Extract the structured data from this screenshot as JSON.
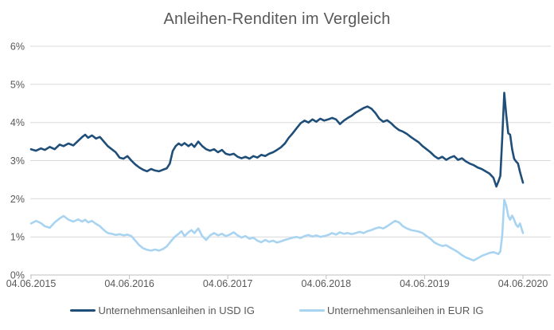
{
  "page": {
    "background": "#FFFFFF"
  },
  "chart_data": {
    "type": "line",
    "title": "Anleihen-Renditen im Vergleich",
    "grid": "horizontal",
    "legend_position": "bottom",
    "colors": {
      "title_text": "#595959",
      "axis_text": "#595959",
      "gridline": "#D9D9D9",
      "axis_line": "#BFBFBF"
    },
    "x_axis": {
      "tick_labels": [
        "04.06.2015",
        "04.06.2016",
        "04.06.2017",
        "04.06.2018",
        "04.06.2019",
        "04.06.2020"
      ],
      "tick_values": [
        0,
        1,
        2,
        3,
        4,
        5
      ],
      "xlim": [
        0,
        5.28
      ]
    },
    "y_axis": {
      "tick_labels": [
        "0%",
        "1%",
        "2%",
        "3%",
        "4%",
        "5%",
        "6%"
      ],
      "tick_values": [
        0,
        1,
        2,
        3,
        4,
        5,
        6
      ],
      "ylim": [
        0,
        6
      ]
    },
    "series": [
      {
        "name": "Unternehmensanleihen in USD IG",
        "color": "#1F4E79",
        "points": [
          [
            0,
            3.3
          ],
          [
            0.05,
            3.26
          ],
          [
            0.1,
            3.32
          ],
          [
            0.14,
            3.28
          ],
          [
            0.19,
            3.36
          ],
          [
            0.24,
            3.3
          ],
          [
            0.29,
            3.42
          ],
          [
            0.33,
            3.38
          ],
          [
            0.38,
            3.45
          ],
          [
            0.43,
            3.4
          ],
          [
            0.48,
            3.52
          ],
          [
            0.52,
            3.62
          ],
          [
            0.55,
            3.68
          ],
          [
            0.58,
            3.6
          ],
          [
            0.62,
            3.66
          ],
          [
            0.66,
            3.58
          ],
          [
            0.7,
            3.62
          ],
          [
            0.74,
            3.5
          ],
          [
            0.78,
            3.38
          ],
          [
            0.82,
            3.3
          ],
          [
            0.86,
            3.22
          ],
          [
            0.9,
            3.08
          ],
          [
            0.94,
            3.05
          ],
          [
            0.98,
            3.12
          ],
          [
            1.02,
            3.0
          ],
          [
            1.06,
            2.9
          ],
          [
            1.1,
            2.82
          ],
          [
            1.14,
            2.76
          ],
          [
            1.18,
            2.72
          ],
          [
            1.22,
            2.78
          ],
          [
            1.26,
            2.74
          ],
          [
            1.3,
            2.72
          ],
          [
            1.34,
            2.76
          ],
          [
            1.38,
            2.8
          ],
          [
            1.41,
            2.92
          ],
          [
            1.44,
            3.25
          ],
          [
            1.47,
            3.38
          ],
          [
            1.5,
            3.45
          ],
          [
            1.53,
            3.4
          ],
          [
            1.56,
            3.46
          ],
          [
            1.6,
            3.38
          ],
          [
            1.63,
            3.44
          ],
          [
            1.66,
            3.36
          ],
          [
            1.7,
            3.5
          ],
          [
            1.74,
            3.38
          ],
          [
            1.78,
            3.3
          ],
          [
            1.82,
            3.26
          ],
          [
            1.86,
            3.3
          ],
          [
            1.9,
            3.22
          ],
          [
            1.94,
            3.28
          ],
          [
            1.98,
            3.18
          ],
          [
            2.02,
            3.15
          ],
          [
            2.06,
            3.18
          ],
          [
            2.1,
            3.1
          ],
          [
            2.14,
            3.06
          ],
          [
            2.18,
            3.1
          ],
          [
            2.22,
            3.05
          ],
          [
            2.26,
            3.12
          ],
          [
            2.3,
            3.08
          ],
          [
            2.34,
            3.15
          ],
          [
            2.38,
            3.12
          ],
          [
            2.42,
            3.18
          ],
          [
            2.46,
            3.22
          ],
          [
            2.5,
            3.28
          ],
          [
            2.54,
            3.35
          ],
          [
            2.58,
            3.45
          ],
          [
            2.62,
            3.6
          ],
          [
            2.66,
            3.72
          ],
          [
            2.7,
            3.85
          ],
          [
            2.74,
            3.98
          ],
          [
            2.78,
            4.05
          ],
          [
            2.82,
            4.0
          ],
          [
            2.86,
            4.08
          ],
          [
            2.9,
            4.02
          ],
          [
            2.94,
            4.1
          ],
          [
            2.98,
            4.05
          ],
          [
            3.02,
            4.08
          ],
          [
            3.06,
            4.12
          ],
          [
            3.1,
            4.08
          ],
          [
            3.14,
            3.96
          ],
          [
            3.18,
            4.05
          ],
          [
            3.22,
            4.12
          ],
          [
            3.26,
            4.18
          ],
          [
            3.3,
            4.26
          ],
          [
            3.34,
            4.32
          ],
          [
            3.38,
            4.38
          ],
          [
            3.42,
            4.42
          ],
          [
            3.46,
            4.36
          ],
          [
            3.5,
            4.25
          ],
          [
            3.54,
            4.1
          ],
          [
            3.58,
            4.02
          ],
          [
            3.62,
            4.06
          ],
          [
            3.66,
            3.98
          ],
          [
            3.7,
            3.88
          ],
          [
            3.74,
            3.8
          ],
          [
            3.78,
            3.76
          ],
          [
            3.82,
            3.7
          ],
          [
            3.86,
            3.62
          ],
          [
            3.9,
            3.55
          ],
          [
            3.94,
            3.48
          ],
          [
            3.98,
            3.38
          ],
          [
            4.02,
            3.3
          ],
          [
            4.06,
            3.22
          ],
          [
            4.1,
            3.12
          ],
          [
            4.14,
            3.05
          ],
          [
            4.18,
            3.1
          ],
          [
            4.22,
            3.02
          ],
          [
            4.26,
            3.08
          ],
          [
            4.3,
            3.12
          ],
          [
            4.34,
            3.02
          ],
          [
            4.38,
            3.06
          ],
          [
            4.42,
            2.98
          ],
          [
            4.46,
            2.92
          ],
          [
            4.5,
            2.88
          ],
          [
            4.54,
            2.82
          ],
          [
            4.58,
            2.78
          ],
          [
            4.62,
            2.72
          ],
          [
            4.66,
            2.66
          ],
          [
            4.7,
            2.55
          ],
          [
            4.73,
            2.32
          ],
          [
            4.75,
            2.45
          ],
          [
            4.77,
            2.6
          ],
          [
            4.79,
            3.6
          ],
          [
            4.81,
            4.78
          ],
          [
            4.83,
            4.2
          ],
          [
            4.85,
            3.72
          ],
          [
            4.87,
            3.68
          ],
          [
            4.89,
            3.3
          ],
          [
            4.91,
            3.05
          ],
          [
            4.93,
            2.98
          ],
          [
            4.95,
            2.92
          ],
          [
            4.97,
            2.7
          ],
          [
            5,
            2.42
          ]
        ]
      },
      {
        "name": "Unternehmensanleihen in EUR IG",
        "color": "#A8D4F2",
        "points": [
          [
            0,
            1.35
          ],
          [
            0.05,
            1.42
          ],
          [
            0.1,
            1.36
          ],
          [
            0.14,
            1.28
          ],
          [
            0.19,
            1.24
          ],
          [
            0.24,
            1.38
          ],
          [
            0.29,
            1.48
          ],
          [
            0.33,
            1.55
          ],
          [
            0.38,
            1.45
          ],
          [
            0.43,
            1.4
          ],
          [
            0.48,
            1.46
          ],
          [
            0.52,
            1.4
          ],
          [
            0.55,
            1.45
          ],
          [
            0.58,
            1.38
          ],
          [
            0.62,
            1.42
          ],
          [
            0.66,
            1.34
          ],
          [
            0.7,
            1.28
          ],
          [
            0.74,
            1.18
          ],
          [
            0.78,
            1.1
          ],
          [
            0.82,
            1.08
          ],
          [
            0.86,
            1.05
          ],
          [
            0.9,
            1.07
          ],
          [
            0.94,
            1.04
          ],
          [
            0.98,
            1.06
          ],
          [
            1.02,
            1.02
          ],
          [
            1.06,
            0.9
          ],
          [
            1.1,
            0.78
          ],
          [
            1.14,
            0.7
          ],
          [
            1.18,
            0.66
          ],
          [
            1.22,
            0.64
          ],
          [
            1.26,
            0.67
          ],
          [
            1.3,
            0.64
          ],
          [
            1.34,
            0.68
          ],
          [
            1.38,
            0.75
          ],
          [
            1.42,
            0.88
          ],
          [
            1.46,
            1.0
          ],
          [
            1.5,
            1.08
          ],
          [
            1.53,
            1.15
          ],
          [
            1.56,
            1.02
          ],
          [
            1.6,
            1.12
          ],
          [
            1.63,
            1.18
          ],
          [
            1.66,
            1.1
          ],
          [
            1.7,
            1.22
          ],
          [
            1.74,
            1.02
          ],
          [
            1.78,
            0.92
          ],
          [
            1.82,
            1.04
          ],
          [
            1.86,
            1.1
          ],
          [
            1.9,
            1.04
          ],
          [
            1.94,
            1.08
          ],
          [
            1.98,
            1.02
          ],
          [
            2.02,
            1.06
          ],
          [
            2.06,
            1.12
          ],
          [
            2.1,
            1.04
          ],
          [
            2.14,
            0.98
          ],
          [
            2.18,
            1.02
          ],
          [
            2.22,
            0.95
          ],
          [
            2.26,
            0.98
          ],
          [
            2.3,
            0.9
          ],
          [
            2.34,
            0.86
          ],
          [
            2.38,
            0.92
          ],
          [
            2.42,
            0.87
          ],
          [
            2.46,
            0.9
          ],
          [
            2.5,
            0.85
          ],
          [
            2.54,
            0.88
          ],
          [
            2.58,
            0.92
          ],
          [
            2.62,
            0.95
          ],
          [
            2.66,
            0.98
          ],
          [
            2.7,
            1.0
          ],
          [
            2.74,
            0.97
          ],
          [
            2.78,
            1.02
          ],
          [
            2.82,
            1.05
          ],
          [
            2.86,
            1.01
          ],
          [
            2.9,
            1.04
          ],
          [
            2.94,
            1.0
          ],
          [
            2.98,
            1.02
          ],
          [
            3.02,
            1.05
          ],
          [
            3.06,
            1.1
          ],
          [
            3.1,
            1.06
          ],
          [
            3.14,
            1.12
          ],
          [
            3.18,
            1.08
          ],
          [
            3.22,
            1.1
          ],
          [
            3.26,
            1.07
          ],
          [
            3.3,
            1.1
          ],
          [
            3.34,
            1.13
          ],
          [
            3.38,
            1.1
          ],
          [
            3.42,
            1.15
          ],
          [
            3.46,
            1.18
          ],
          [
            3.5,
            1.22
          ],
          [
            3.54,
            1.25
          ],
          [
            3.58,
            1.22
          ],
          [
            3.62,
            1.28
          ],
          [
            3.66,
            1.35
          ],
          [
            3.7,
            1.42
          ],
          [
            3.74,
            1.38
          ],
          [
            3.78,
            1.28
          ],
          [
            3.82,
            1.22
          ],
          [
            3.86,
            1.18
          ],
          [
            3.9,
            1.16
          ],
          [
            3.94,
            1.14
          ],
          [
            3.98,
            1.1
          ],
          [
            4.02,
            1.02
          ],
          [
            4.06,
            0.95
          ],
          [
            4.1,
            0.85
          ],
          [
            4.14,
            0.8
          ],
          [
            4.18,
            0.76
          ],
          [
            4.22,
            0.78
          ],
          [
            4.26,
            0.72
          ],
          [
            4.3,
            0.66
          ],
          [
            4.34,
            0.6
          ],
          [
            4.38,
            0.52
          ],
          [
            4.42,
            0.46
          ],
          [
            4.46,
            0.42
          ],
          [
            4.5,
            0.38
          ],
          [
            4.54,
            0.44
          ],
          [
            4.58,
            0.5
          ],
          [
            4.62,
            0.54
          ],
          [
            4.66,
            0.58
          ],
          [
            4.7,
            0.6
          ],
          [
            4.73,
            0.57
          ],
          [
            4.75,
            0.55
          ],
          [
            4.77,
            0.62
          ],
          [
            4.79,
            1.05
          ],
          [
            4.81,
            1.97
          ],
          [
            4.83,
            1.82
          ],
          [
            4.85,
            1.55
          ],
          [
            4.87,
            1.45
          ],
          [
            4.89,
            1.56
          ],
          [
            4.91,
            1.45
          ],
          [
            4.93,
            1.32
          ],
          [
            4.95,
            1.26
          ],
          [
            4.97,
            1.35
          ],
          [
            5,
            1.1
          ]
        ]
      }
    ]
  }
}
